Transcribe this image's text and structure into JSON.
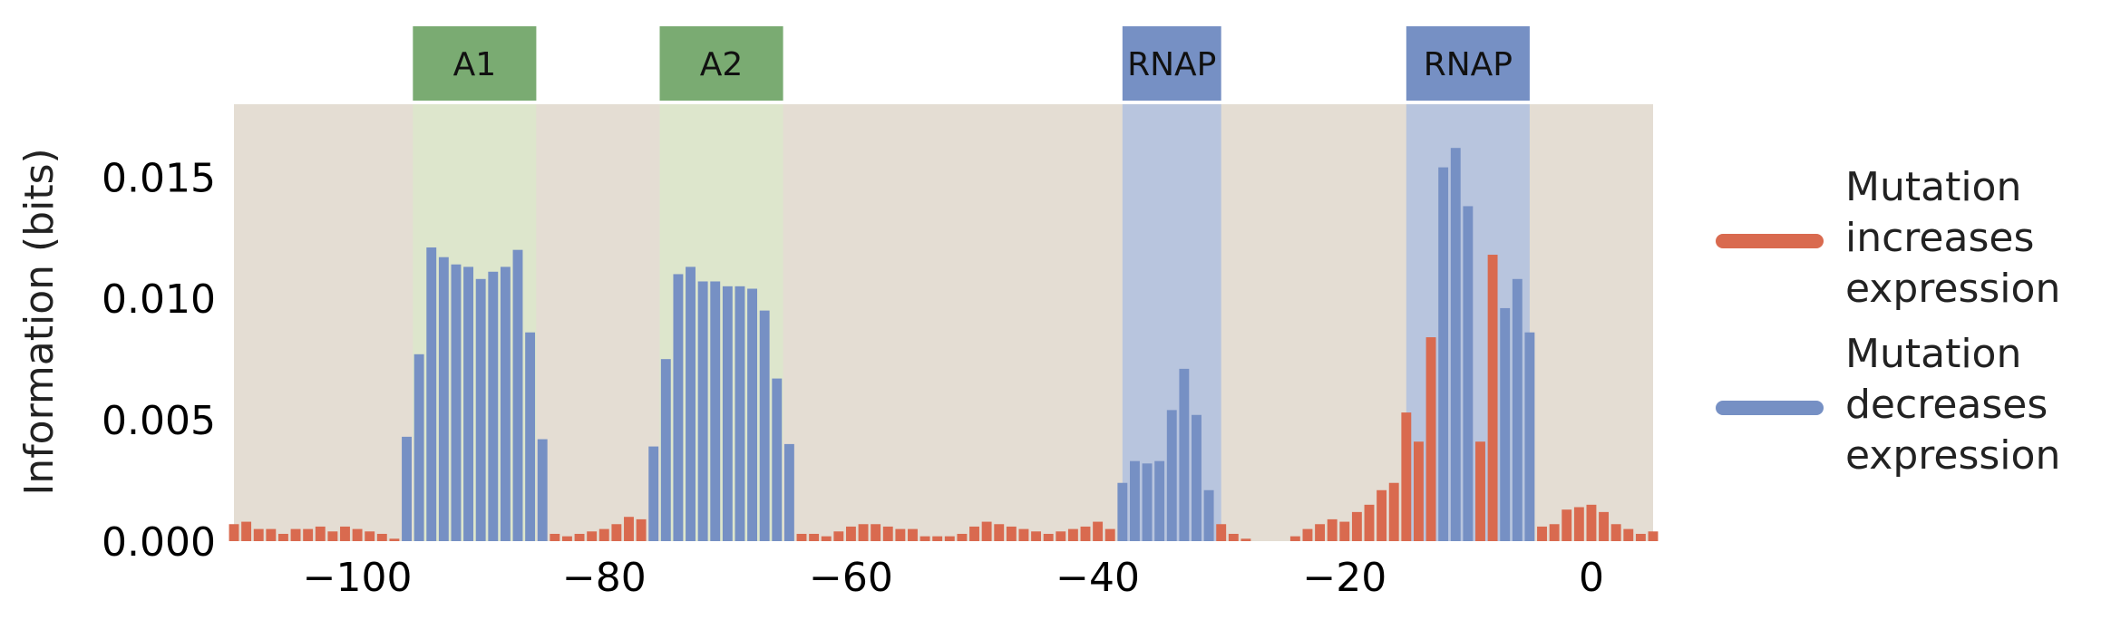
{
  "chart_data": {
    "type": "bar",
    "xlabel": "",
    "ylabel": "Information (bits)",
    "xlim": [
      -110,
      5
    ],
    "ylim": [
      0,
      0.018
    ],
    "grid": false,
    "legend_position": "right",
    "x_ticks": [
      {
        "value": -100,
        "label": "−100"
      },
      {
        "value": -80,
        "label": "−80"
      },
      {
        "value": -60,
        "label": "−60"
      },
      {
        "value": -40,
        "label": "−40"
      },
      {
        "value": -20,
        "label": "−20"
      },
      {
        "value": 0,
        "label": "0"
      }
    ],
    "y_ticks": [
      {
        "value": 0.0,
        "label": "0.000"
      },
      {
        "value": 0.005,
        "label": "0.005"
      },
      {
        "value": 0.01,
        "label": "0.010"
      },
      {
        "value": 0.015,
        "label": "0.015"
      }
    ],
    "regions": [
      {
        "label": "A1",
        "start": -95.5,
        "end": -85.5,
        "color": "#7aab72",
        "shade": "#dde6cc"
      },
      {
        "label": "A2",
        "start": -75.5,
        "end": -65.5,
        "color": "#7aab72",
        "shade": "#dde6cc"
      },
      {
        "label": "RNAP",
        "start": -38.0,
        "end": -30.0,
        "color": "#7690c4",
        "shade": "#b8c5de"
      },
      {
        "label": "RNAP",
        "start": -15.0,
        "end": -5.0,
        "color": "#7690c4",
        "shade": "#b8c5de"
      }
    ],
    "series": [
      {
        "name": "Mutation increases expression",
        "color": "#d96a4f"
      },
      {
        "name": "Mutation decreases expression",
        "color": "#7690c4"
      }
    ],
    "positions": [
      -110,
      -109,
      -108,
      -107,
      -106,
      -105,
      -104,
      -103,
      -102,
      -101,
      -100,
      -99,
      -98,
      -97,
      -96,
      -95,
      -94,
      -93,
      -92,
      -91,
      -90,
      -89,
      -88,
      -87,
      -86,
      -85,
      -84,
      -83,
      -82,
      -81,
      -80,
      -79,
      -78,
      -77,
      -76,
      -75,
      -74,
      -73,
      -72,
      -71,
      -70,
      -69,
      -68,
      -67,
      -66,
      -65,
      -64,
      -63,
      -62,
      -61,
      -60,
      -59,
      -58,
      -57,
      -56,
      -55,
      -54,
      -53,
      -52,
      -51,
      -50,
      -49,
      -48,
      -47,
      -46,
      -45,
      -44,
      -43,
      -42,
      -41,
      -40,
      -39,
      -38,
      -37,
      -36,
      -35,
      -34,
      -33,
      -32,
      -31,
      -30,
      -29,
      -28,
      -27,
      -26,
      -25,
      -24,
      -23,
      -22,
      -21,
      -20,
      -19,
      -18,
      -17,
      -16,
      -15,
      -14,
      -13,
      -12,
      -11,
      -10,
      -9,
      -8,
      -7,
      -6,
      -5,
      -4,
      -3,
      -2,
      -1,
      0,
      1,
      2,
      3,
      4,
      5
    ],
    "values": [
      0.0007,
      0.0008,
      0.0005,
      0.0005,
      0.0003,
      0.0005,
      0.0005,
      0.0006,
      0.0004,
      0.0006,
      0.0005,
      0.0004,
      0.0003,
      0.0001,
      0.0043,
      0.0077,
      0.0121,
      0.0117,
      0.0114,
      0.0113,
      0.0108,
      0.0111,
      0.0113,
      0.012,
      0.0086,
      0.0042,
      0.0003,
      0.0002,
      0.0003,
      0.0004,
      0.0005,
      0.0007,
      0.001,
      0.0009,
      0.0039,
      0.0075,
      0.011,
      0.0113,
      0.0107,
      0.0107,
      0.0105,
      0.0105,
      0.0104,
      0.0095,
      0.0067,
      0.004,
      0.0003,
      0.0003,
      0.0002,
      0.0004,
      0.0006,
      0.0007,
      0.0007,
      0.0006,
      0.0005,
      0.0005,
      0.0002,
      0.0002,
      0.0002,
      0.0003,
      0.0006,
      0.0008,
      0.0007,
      0.0006,
      0.0005,
      0.0004,
      0.0003,
      0.0004,
      0.0005,
      0.0006,
      0.0008,
      0.0005,
      0.0024,
      0.0033,
      0.0032,
      0.0033,
      0.0054,
      0.0071,
      0.0052,
      0.0021,
      0.0007,
      0.0003,
      0.0001,
      0.0,
      0.0,
      0.0,
      0.0002,
      0.0005,
      0.0007,
      0.0009,
      0.0008,
      0.0012,
      0.0015,
      0.0021,
      0.0024,
      0.0053,
      0.0041,
      0.0084,
      0.0154,
      0.0162,
      0.0138,
      0.0041,
      0.0118,
      0.0096,
      0.0108,
      0.0086,
      0.0006,
      0.0007,
      0.0013,
      0.0014,
      0.0015,
      0.0012,
      0.0007,
      0.0005,
      0.0003,
      0.0004
    ],
    "direction": [
      "inc",
      "inc",
      "inc",
      "inc",
      "inc",
      "inc",
      "inc",
      "inc",
      "inc",
      "inc",
      "inc",
      "inc",
      "inc",
      "inc",
      "dec",
      "dec",
      "dec",
      "dec",
      "dec",
      "dec",
      "dec",
      "dec",
      "dec",
      "dec",
      "dec",
      "dec",
      "inc",
      "inc",
      "inc",
      "inc",
      "inc",
      "inc",
      "inc",
      "inc",
      "dec",
      "dec",
      "dec",
      "dec",
      "dec",
      "dec",
      "dec",
      "dec",
      "dec",
      "dec",
      "dec",
      "dec",
      "inc",
      "inc",
      "inc",
      "inc",
      "inc",
      "inc",
      "inc",
      "inc",
      "inc",
      "inc",
      "inc",
      "inc",
      "inc",
      "inc",
      "inc",
      "inc",
      "inc",
      "inc",
      "inc",
      "inc",
      "inc",
      "inc",
      "inc",
      "inc",
      "inc",
      "inc",
      "dec",
      "dec",
      "dec",
      "dec",
      "dec",
      "dec",
      "dec",
      "dec",
      "inc",
      "inc",
      "inc",
      "inc",
      "inc",
      "inc",
      "inc",
      "inc",
      "inc",
      "inc",
      "inc",
      "inc",
      "inc",
      "inc",
      "inc",
      "inc",
      "inc",
      "inc",
      "dec",
      "dec",
      "dec",
      "inc",
      "inc",
      "dec",
      "dec",
      "dec",
      "inc",
      "inc",
      "inc",
      "inc",
      "inc",
      "inc",
      "inc",
      "inc",
      "inc",
      "inc"
    ],
    "colors": {
      "plot_background": "#e4ddd3",
      "increase": "#d96a4f",
      "decrease": "#7690c4"
    }
  }
}
